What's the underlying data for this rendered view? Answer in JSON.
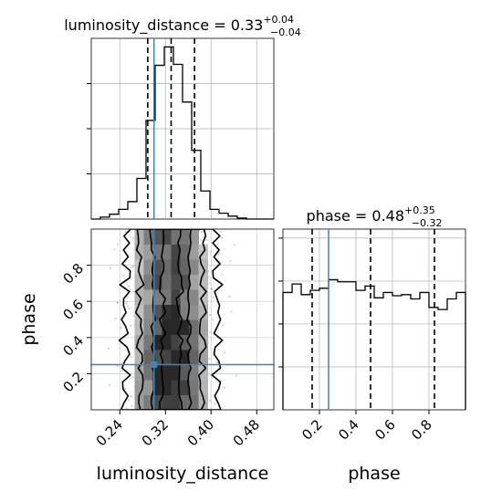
{
  "chart_data": {
    "type": "corner",
    "parameters": [
      "luminosity_distance",
      "phase"
    ],
    "truth": {
      "luminosity_distance": 0.3,
      "phase": 0.25
    },
    "truth_color": "#4682b4",
    "line_color": "#000000",
    "grid": true,
    "panels": [
      {
        "id": "hist_luminosity_distance",
        "type": "histogram",
        "title_name": "luminosity_distance",
        "title_value": "0.33",
        "title_plus": "+0.04",
        "title_minus": "−0.04",
        "xlim": [
          0.19,
          0.51
        ],
        "quantiles": [
          0.289,
          0.33,
          0.371
        ],
        "bins": [
          0.19,
          0.206,
          0.222,
          0.238,
          0.254,
          0.27,
          0.286,
          0.302,
          0.318,
          0.334,
          0.35,
          0.366,
          0.382,
          0.398,
          0.414,
          0.43,
          0.446,
          0.462,
          0.478,
          0.494,
          0.51
        ],
        "counts": [
          0,
          2,
          5,
          10,
          18,
          42,
          102,
          159,
          178,
          160,
          121,
          71,
          29,
          10,
          6,
          3,
          1,
          0,
          0,
          0
        ]
      },
      {
        "id": "hist_phase",
        "type": "histogram",
        "title_name": "phase",
        "title_value": "0.48",
        "title_plus": "+0.35",
        "title_minus": "−0.32",
        "xlim": [
          0.0,
          1.0
        ],
        "quantiles": [
          0.16,
          0.48,
          0.83
        ],
        "bins": [
          0.0,
          0.05,
          0.1,
          0.15,
          0.2,
          0.25,
          0.3,
          0.35,
          0.4,
          0.45,
          0.5,
          0.55,
          0.6,
          0.65,
          0.7,
          0.75,
          0.8,
          0.85,
          0.9,
          0.95,
          1.0
        ],
        "counts": [
          110,
          118,
          108,
          112,
          114,
          122,
          120,
          120,
          112,
          116,
          105,
          110,
          107,
          108,
          104,
          110,
          96,
          94,
          104,
          110
        ]
      },
      {
        "id": "scatter_phase_vs_luminosity_distance",
        "type": "2d-density",
        "xlim": [
          0.19,
          0.51
        ],
        "ylim": [
          0.0,
          1.0
        ],
        "x_center": 0.33,
        "x_sigma": 0.038,
        "contour_levels": [
          0.2,
          0.5,
          0.8,
          0.92
        ]
      }
    ],
    "x_ticks_luminosity_distance": [
      "0.24",
      "0.32",
      "0.40",
      "0.48"
    ],
    "x_ticks_phase": [
      "0.2",
      "0.4",
      "0.6",
      "0.8"
    ],
    "y_ticks_phase": [
      "0.2",
      "0.4",
      "0.6",
      "0.8"
    ],
    "xlabel_luminosity_distance": "luminosity_distance",
    "xlabel_phase": "phase",
    "ylabel_phase": "phase"
  }
}
